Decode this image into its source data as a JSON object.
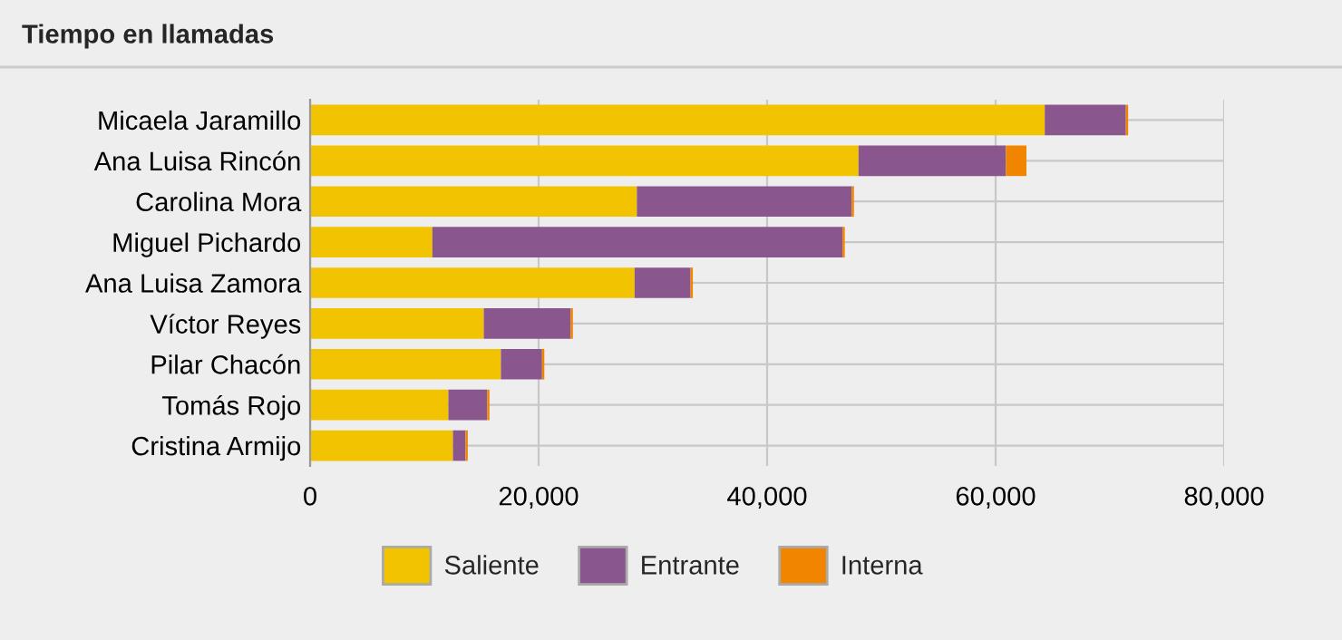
{
  "chart_data": {
    "type": "bar",
    "orientation": "horizontal",
    "stacked": true,
    "title": "Tiempo en llamadas",
    "categories": [
      "Micaela Jaramillo",
      "Ana Luisa Rincón",
      "Carolina Mora",
      "Miguel Pichardo",
      "Ana Luisa Zamora",
      "Víctor Reyes",
      "Pilar Chacón",
      "Tomás Rojo",
      "Cristina Armijo"
    ],
    "series": [
      {
        "name": "Saliente",
        "color": "#f2c300",
        "values": [
          64300,
          48000,
          28600,
          10700,
          28400,
          15200,
          16700,
          12100,
          12500
        ]
      },
      {
        "name": "Entrante",
        "color": "#8a568e",
        "values": [
          7100,
          12900,
          18800,
          35900,
          4900,
          7600,
          3600,
          3400,
          1100
        ]
      },
      {
        "name": "Interna",
        "color": "#f28500",
        "values": [
          200,
          1800,
          200,
          200,
          200,
          200,
          200,
          200,
          200
        ]
      }
    ],
    "xlim": [
      0,
      80000
    ],
    "xticks": [
      {
        "value": 0,
        "label": "0"
      },
      {
        "value": 20000,
        "label": "20,000"
      },
      {
        "value": 40000,
        "label": "40,000"
      },
      {
        "value": 60000,
        "label": "60,000"
      },
      {
        "value": 80000,
        "label": "80,000"
      }
    ],
    "grid": true,
    "legend": "bottom"
  }
}
